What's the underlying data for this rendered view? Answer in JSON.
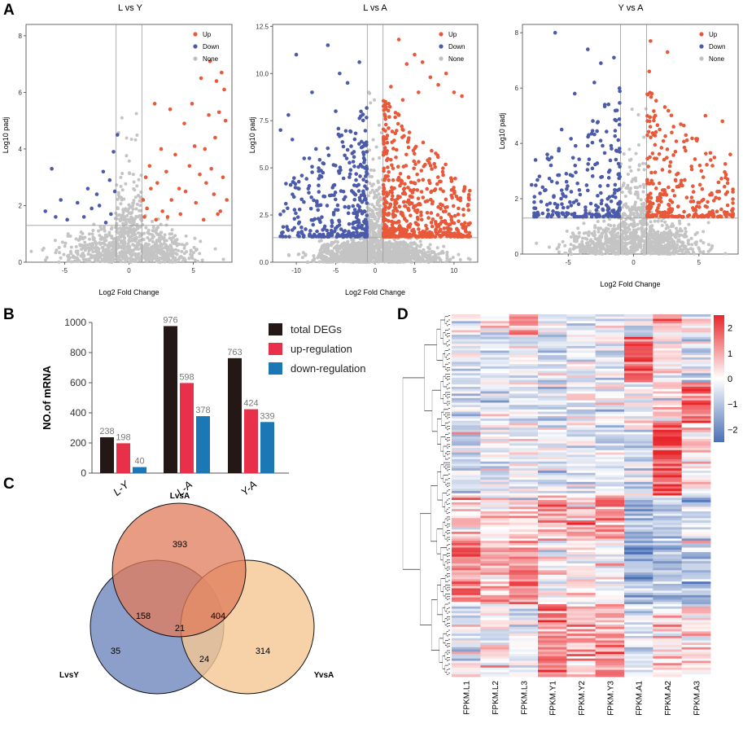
{
  "chart_data": [
    {
      "type": "scatter",
      "panel": "A",
      "title": "L vs Y",
      "xlabel": "Log2 Fold Change",
      "ylabel": "Log10 padj",
      "xlim": [
        -8,
        8
      ],
      "ylim": [
        0,
        8.4
      ],
      "xticks": [
        -5,
        0,
        5
      ],
      "yticks": [
        0,
        2,
        4,
        6,
        8
      ],
      "xtick_labels": [
        "-5",
        "0",
        "5"
      ],
      "ytick_labels": [
        "0",
        "2",
        "4",
        "6",
        "8"
      ],
      "vlines": [
        -1,
        1
      ],
      "hline": 1.3,
      "legend": [
        {
          "label": "Up",
          "color": "#E8593A"
        },
        {
          "label": "Down",
          "color": "#4B5BAA"
        },
        {
          "label": "None",
          "color": "#C0C0C0"
        }
      ],
      "series": [
        {
          "name": "Up",
          "points": [
            [
              7.2,
              6.7
            ],
            [
              6.8,
              6.4
            ],
            [
              7.4,
              6.1
            ],
            [
              6.3,
              7.1
            ],
            [
              5.6,
              6.5
            ],
            [
              7.0,
              5.3
            ],
            [
              4.9,
              5.6
            ],
            [
              6.2,
              5.2
            ],
            [
              3.2,
              5.4
            ],
            [
              4.3,
              4.9
            ],
            [
              7.5,
              5.0
            ],
            [
              5.9,
              4.0
            ],
            [
              6.7,
              4.4
            ],
            [
              2.0,
              5.6
            ],
            [
              5.1,
              4.1
            ],
            [
              2.5,
              4.0
            ],
            [
              3.6,
              3.8
            ],
            [
              4.7,
              3.4
            ],
            [
              6.4,
              3.3
            ],
            [
              7.3,
              3.0
            ],
            [
              1.6,
              3.4
            ],
            [
              2.9,
              3.2
            ],
            [
              5.5,
              3.1
            ],
            [
              3.9,
              2.6
            ],
            [
              1.3,
              3.0
            ],
            [
              2.2,
              2.8
            ],
            [
              4.4,
              2.5
            ],
            [
              6.0,
              2.8
            ],
            [
              7.6,
              2.2
            ],
            [
              1.1,
              2.2
            ],
            [
              1.7,
              2.6
            ],
            [
              3.3,
              2.2
            ],
            [
              5.2,
              2.1
            ],
            [
              6.6,
              2.4
            ],
            [
              1.4,
              1.9
            ],
            [
              2.6,
              1.8
            ],
            [
              4.0,
              1.7
            ],
            [
              7.1,
              1.8
            ],
            [
              1.2,
              1.6
            ],
            [
              2.1,
              1.5
            ],
            [
              3.0,
              1.6
            ],
            [
              5.8,
              1.5
            ],
            [
              6.9,
              1.7
            ]
          ]
        },
        {
          "name": "Down",
          "points": [
            [
              -0.9,
              4.5
            ],
            [
              -1.2,
              3.9
            ],
            [
              -6.0,
              3.3
            ],
            [
              -2.0,
              3.2
            ],
            [
              -1.5,
              2.9
            ],
            [
              -3.2,
              2.6
            ],
            [
              -2.5,
              2.4
            ],
            [
              -1.1,
              2.5
            ],
            [
              -5.3,
              2.2
            ],
            [
              -4.0,
              2.1
            ],
            [
              -6.5,
              1.8
            ],
            [
              -2.9,
              1.9
            ],
            [
              -1.4,
              1.7
            ],
            [
              -4.8,
              1.5
            ],
            [
              -3.5,
              1.6
            ],
            [
              -1.8,
              1.4
            ],
            [
              -5.7,
              1.6
            ],
            [
              -2.3,
              2.0
            ]
          ]
        },
        {
          "name": "None",
          "count": 900,
          "pattern": "cloud-small"
        }
      ]
    },
    {
      "type": "scatter",
      "panel": "A",
      "title": "L vs A",
      "xlabel": "Log2 Fold Change",
      "ylabel": "Log10 padj",
      "xlim": [
        -13,
        13
      ],
      "ylim": [
        0,
        12.6
      ],
      "xticks": [
        -10,
        -5,
        0,
        5,
        10
      ],
      "yticks": [
        0,
        2.5,
        5,
        7.5,
        10,
        12.5
      ],
      "xtick_labels": [
        "-10",
        "-5",
        "0",
        "5",
        "10"
      ],
      "ytick_labels": [
        "0.0",
        "2.5",
        "5.0",
        "7.5",
        "10.0",
        "12.5"
      ],
      "vlines": [
        -1,
        1
      ],
      "hline": 1.3,
      "legend": [
        {
          "label": "Up",
          "color": "#E8593A"
        },
        {
          "label": "Down",
          "color": "#4B5BAA"
        },
        {
          "label": "None",
          "color": "#C0C0C0"
        }
      ],
      "series": [
        {
          "name": "Up",
          "points": [
            [
              3.0,
              11.8
            ],
            [
              5.0,
              11.0
            ],
            [
              9.0,
              10.0
            ],
            [
              7.0,
              9.8
            ],
            [
              4.0,
              10.5
            ],
            [
              6.0,
              10.6
            ],
            [
              10.0,
              9.0
            ],
            [
              8.0,
              9.4
            ],
            [
              11.0,
              8.8
            ],
            [
              5.5,
              9.0
            ],
            [
              2.0,
              9.3
            ],
            [
              3.5,
              8.6
            ]
          ],
          "extra": 560
        },
        {
          "name": "Down",
          "points": [
            [
              -10.0,
              11.0
            ],
            [
              -6.0,
              11.5
            ],
            [
              -4.5,
              10.0
            ],
            [
              -8.0,
              9.0
            ],
            [
              -3.5,
              9.5
            ],
            [
              -2.0,
              10.6
            ],
            [
              -12.0,
              7.0
            ],
            [
              -10.5,
              6.5
            ],
            [
              -11.0,
              7.8
            ],
            [
              -5.0,
              8.0
            ],
            [
              -9.0,
              5.5
            ],
            [
              -7.5,
              6.0
            ]
          ],
          "extra": 350
        },
        {
          "name": "None",
          "count": 1400,
          "pattern": "cloud-wide"
        }
      ]
    },
    {
      "type": "scatter",
      "panel": "A",
      "title": "Y vs A",
      "xlabel": "Log2 Fold Change",
      "ylabel": "Log10 padj",
      "xlim": [
        -8.5,
        8
      ],
      "ylim": [
        0,
        8.3
      ],
      "xticks": [
        -5,
        0,
        5
      ],
      "yticks": [
        0,
        2,
        4,
        6,
        8
      ],
      "xtick_labels": [
        "-5",
        "0",
        "5"
      ],
      "ytick_labels": [
        "0",
        "2",
        "4",
        "6",
        "8"
      ],
      "vlines": [
        -1,
        1
      ],
      "hline": 1.3,
      "legend": [
        {
          "label": "Up",
          "color": "#E8593A"
        },
        {
          "label": "Down",
          "color": "#4B5BAA"
        },
        {
          "label": "None",
          "color": "#C0C0C0"
        }
      ],
      "series": [
        {
          "name": "Up",
          "points": [
            [
              1.3,
              7.7
            ],
            [
              2.6,
              7.3
            ],
            [
              1.2,
              6.6
            ],
            [
              1.4,
              5.8
            ],
            [
              5.5,
              5.0
            ],
            [
              6.8,
              4.8
            ],
            [
              4.0,
              4.3
            ],
            [
              2.0,
              4.5
            ],
            [
              7.4,
              3.6
            ],
            [
              3.2,
              3.7
            ],
            [
              5.9,
              3.4
            ],
            [
              7.2,
              2.7
            ]
          ],
          "extra": 280
        },
        {
          "name": "Down",
          "points": [
            [
              -6.0,
              8.0
            ],
            [
              -3.5,
              7.4
            ],
            [
              -2.5,
              6.9
            ],
            [
              -1.5,
              7.1
            ],
            [
              -3.0,
              6.2
            ],
            [
              -4.5,
              5.8
            ],
            [
              -2.2,
              5.4
            ],
            [
              -5.5,
              4.5
            ],
            [
              -6.6,
              3.6
            ],
            [
              -7.5,
              3.4
            ],
            [
              -7.8,
              2.5
            ],
            [
              -6.8,
              2.3
            ]
          ],
          "extra": 230
        },
        {
          "name": "None",
          "count": 1000,
          "pattern": "cloud-medium"
        }
      ]
    },
    {
      "type": "bar",
      "panel": "B",
      "ylabel": "NO.of mRNA",
      "categories": [
        "L-Y",
        "L-A",
        "Y-A"
      ],
      "ylim": [
        0,
        1000
      ],
      "yticks": [
        0,
        200,
        400,
        600,
        800,
        1000
      ],
      "ytick_labels": [
        "0",
        "200",
        "400",
        "600",
        "800",
        "1000"
      ],
      "series": [
        {
          "name": "total DEGs",
          "color": "#231815",
          "values": [
            238,
            976,
            763
          ]
        },
        {
          "name": "up-regulation",
          "color": "#E8304A",
          "values": [
            198,
            598,
            424
          ]
        },
        {
          "name": "down-regulation",
          "color": "#1C78B4",
          "values": [
            40,
            378,
            339
          ]
        }
      ],
      "value_labels": [
        [
          "238",
          "198",
          "40"
        ],
        [
          "976",
          "598",
          "378"
        ],
        [
          "763",
          "424",
          "339"
        ]
      ]
    },
    {
      "type": "venn",
      "panel": "C",
      "sets": [
        {
          "name": "LvsA",
          "color": "#E07B5A"
        },
        {
          "name": "LvsY",
          "color": "#8095C4"
        },
        {
          "name": "YvsA",
          "color": "#F5C792"
        }
      ],
      "regions": {
        "LvsA_only": "393",
        "LvsY_only": "35",
        "YvsA_only": "314",
        "LvsA_LvsY": "158",
        "LvsA_YvsA": "404",
        "LvsY_YvsA": "24",
        "all": "21"
      }
    },
    {
      "type": "heatmap",
      "panel": "D",
      "columns": [
        "FPKM.L1",
        "FPKM.L2",
        "FPKM.L3",
        "FPKM.Y1",
        "FPKM.Y2",
        "FPKM.Y3",
        "FPKM.A1",
        "FPKM.A2",
        "FPKM.A3"
      ],
      "n_rows": 160,
      "color_scale": {
        "min": -2.5,
        "max": 2.5,
        "low": "#4A6FB5",
        "mid": "#FFFFFF",
        "high": "#E8262B"
      },
      "colorbar_ticks": [
        "2",
        "1",
        "0",
        "−1",
        "−2"
      ],
      "colorbar_values": [
        2,
        1,
        0,
        -1,
        -2
      ],
      "blocks": [
        {
          "rows": [
            0,
            10
          ],
          "cols": {
            "0": -0.2,
            "1": 0.4,
            "2": 1.6,
            "3": -0.3,
            "4": -0.3,
            "5": -0.1,
            "6": -0.5,
            "7": 0.8,
            "8": 0.3
          }
        },
        {
          "rows": [
            10,
            30
          ],
          "cols": {
            "0": -0.4,
            "1": -0.3,
            "2": -0.4,
            "3": -0.4,
            "4": -0.3,
            "5": -0.3,
            "6": 1.9,
            "7": 0.2,
            "8": -0.3
          }
        },
        {
          "rows": [
            30,
            48
          ],
          "cols": {
            "0": -0.4,
            "1": -0.3,
            "2": -0.3,
            "3": -0.5,
            "4": -0.4,
            "5": -0.3,
            "6": 0.1,
            "7": 0.5,
            "8": 1.8
          }
        },
        {
          "rows": [
            48,
            80
          ],
          "cols": {
            "0": -0.5,
            "1": -0.4,
            "2": -0.4,
            "3": -0.5,
            "4": -0.4,
            "5": -0.4,
            "6": -0.6,
            "7": 2.0,
            "8": 0.1
          }
        },
        {
          "rows": [
            80,
            100
          ],
          "cols": {
            "0": 0.7,
            "1": 0.5,
            "2": 0.3,
            "3": 1.2,
            "4": 0.6,
            "5": 1.4,
            "6": -1.1,
            "7": -0.9,
            "8": -0.8
          }
        },
        {
          "rows": [
            100,
            128
          ],
          "cols": {
            "0": 1.3,
            "1": 0.9,
            "2": 1.3,
            "3": 0.0,
            "4": 0.2,
            "5": 0.1,
            "6": -1.3,
            "7": -1.0,
            "8": -1.0
          }
        },
        {
          "rows": [
            128,
            160
          ],
          "cols": {
            "0": -0.3,
            "1": 0.1,
            "2": -0.3,
            "3": 1.5,
            "4": 0.7,
            "5": 1.2,
            "6": -0.5,
            "7": 0.4,
            "8": 0.2
          }
        }
      ]
    }
  ],
  "panel_labels": {
    "A": "A",
    "B": "B",
    "C": "C",
    "D": "D"
  }
}
